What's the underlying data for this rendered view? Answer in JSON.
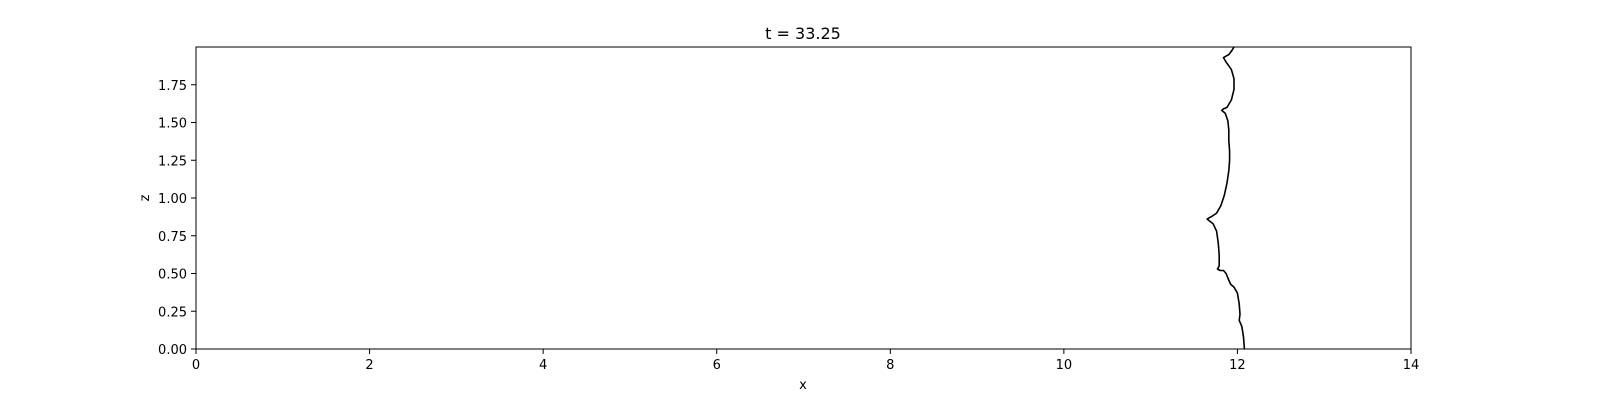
{
  "chart_data": {
    "type": "line",
    "title": "t = 33.25",
    "xlabel": "x",
    "ylabel": "z",
    "xlim": [
      0,
      14
    ],
    "ylim": [
      0,
      2.0
    ],
    "xticks": [
      0,
      2,
      4,
      6,
      8,
      10,
      12,
      14
    ],
    "xtick_labels": [
      "0",
      "2",
      "4",
      "6",
      "8",
      "10",
      "12",
      "14"
    ],
    "yticks": [
      0.0,
      0.25,
      0.5,
      0.75,
      1.0,
      1.25,
      1.5,
      1.75
    ],
    "ytick_labels": [
      "0.00",
      "0.25",
      "0.50",
      "0.75",
      "1.00",
      "1.25",
      "1.50",
      "1.75"
    ],
    "grid": false,
    "series": [
      {
        "color": "#000000",
        "points": [
          [
            12.08,
            0.0
          ],
          [
            12.07,
            0.08
          ],
          [
            12.05,
            0.15
          ],
          [
            12.02,
            0.19
          ],
          [
            12.03,
            0.23
          ],
          [
            12.02,
            0.3
          ],
          [
            12.0,
            0.37
          ],
          [
            11.96,
            0.41
          ],
          [
            11.92,
            0.43
          ],
          [
            11.89,
            0.47
          ],
          [
            11.87,
            0.5
          ],
          [
            11.84,
            0.52
          ],
          [
            11.8,
            0.52
          ],
          [
            11.77,
            0.53
          ],
          [
            11.79,
            0.55
          ],
          [
            11.79,
            0.62
          ],
          [
            11.78,
            0.7
          ],
          [
            11.76,
            0.78
          ],
          [
            11.72,
            0.83
          ],
          [
            11.65,
            0.86
          ],
          [
            11.71,
            0.88
          ],
          [
            11.76,
            0.9
          ],
          [
            11.81,
            0.95
          ],
          [
            11.85,
            1.02
          ],
          [
            11.88,
            1.1
          ],
          [
            11.9,
            1.18
          ],
          [
            11.91,
            1.25
          ],
          [
            11.91,
            1.31
          ],
          [
            11.9,
            1.38
          ],
          [
            11.9,
            1.45
          ],
          [
            11.89,
            1.51
          ],
          [
            11.86,
            1.56
          ],
          [
            11.82,
            1.58
          ],
          [
            11.84,
            1.59
          ],
          [
            11.88,
            1.6
          ],
          [
            11.93,
            1.65
          ],
          [
            11.96,
            1.72
          ],
          [
            11.96,
            1.79
          ],
          [
            11.93,
            1.85
          ],
          [
            11.87,
            1.9
          ],
          [
            11.84,
            1.93
          ],
          [
            11.9,
            1.95
          ],
          [
            11.94,
            1.98
          ],
          [
            11.96,
            2.0
          ]
        ]
      }
    ]
  }
}
